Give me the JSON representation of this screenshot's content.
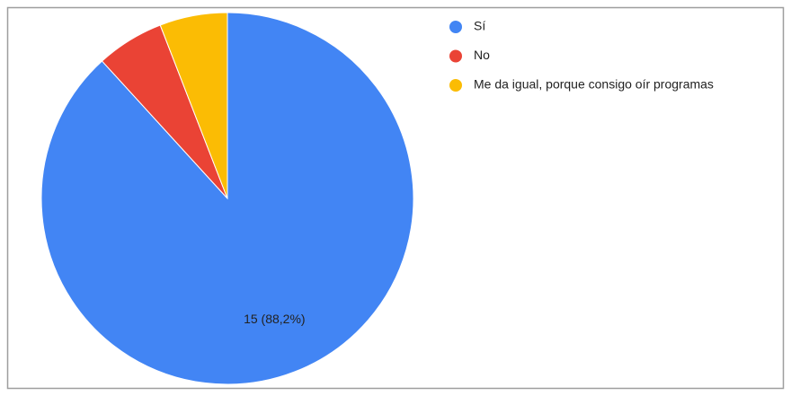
{
  "chart_data": {
    "type": "pie",
    "categories": [
      "Sí",
      "No",
      "Me da igual, porque consigo oír programas"
    ],
    "values": [
      15,
      1,
      1
    ],
    "value_labels": [
      "15 (88,2%)",
      null,
      null
    ],
    "colors": [
      "#4285f4",
      "#ea4335",
      "#fbbc04"
    ],
    "legend": "right"
  }
}
